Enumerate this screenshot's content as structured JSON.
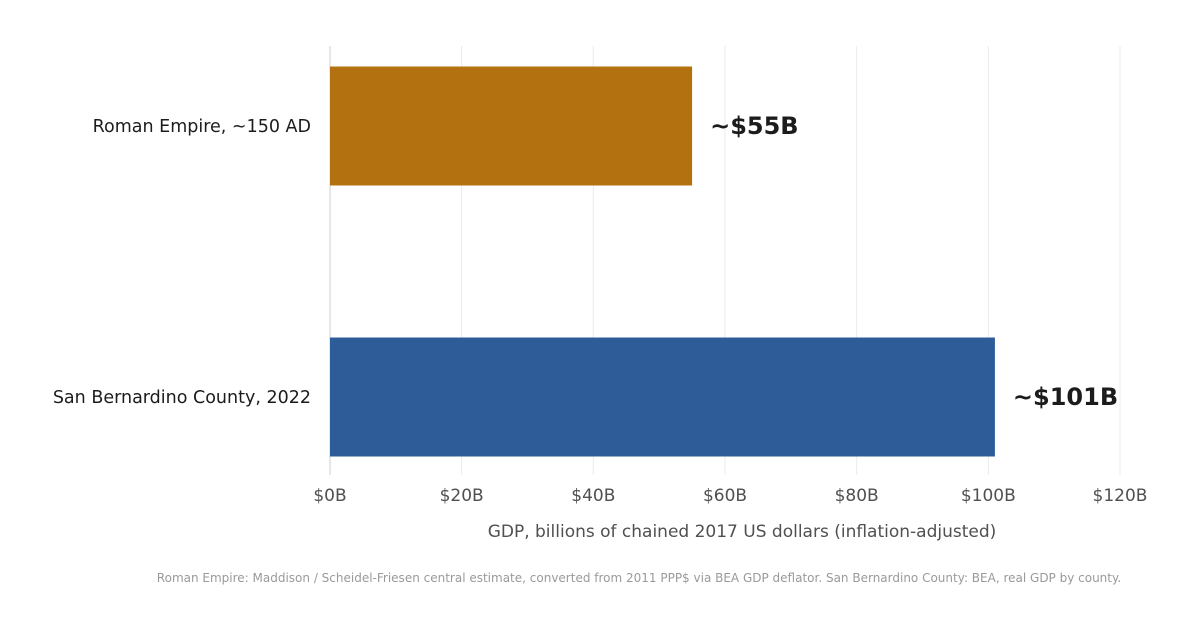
{
  "chart_data": {
    "type": "bar",
    "orientation": "horizontal",
    "categories": [
      "Roman Empire, ~150 AD",
      "San Bernardino County, 2022"
    ],
    "values": [
      55,
      101
    ],
    "value_labels": [
      "~$55B",
      "~$101B"
    ],
    "colors": [
      "#b47110",
      "#2d5c99"
    ],
    "xlim": [
      0,
      120
    ],
    "xticks": [
      0,
      20,
      40,
      60,
      80,
      100,
      120
    ],
    "xtick_labels": [
      "$0B",
      "$20B",
      "$40B",
      "$60B",
      "$80B",
      "$100B",
      "$120B"
    ],
    "xlabel": "GDP, billions of chained 2017 US dollars (inflation-adjusted)",
    "ylabel": "",
    "title": "",
    "grid": true,
    "legend": false,
    "source_note": "Roman Empire: Maddison / Scheidel-Friesen central estimate, converted from 2011 PPP$ via BEA GDP deflator.  San Bernardino County: BEA, real GDP by county."
  }
}
